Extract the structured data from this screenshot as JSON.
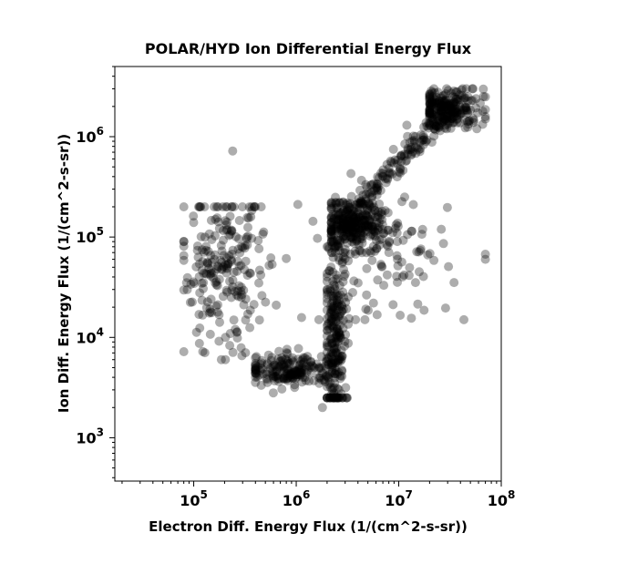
{
  "chart_data": {
    "type": "scatter",
    "title": "POLAR/HYD  Ion Differential Energy Flux",
    "xlabel": "Electron Diff. Energy Flux (1/(cm^2-s-sr))",
    "ylabel": "Ion Diff. Energy Flux (1/(cm^2-s-sr))",
    "x_scale": "log",
    "y_scale": "log",
    "xlim": [
      17000,
      100000000
    ],
    "ylim": [
      370,
      5000000
    ],
    "x_ticks": [
      {
        "base": "10",
        "exp": "5",
        "value": 100000
      },
      {
        "base": "10",
        "exp": "6",
        "value": 1000000
      },
      {
        "base": "10",
        "exp": "7",
        "value": 10000000
      },
      {
        "base": "10",
        "exp": "8",
        "value": 100000000
      }
    ],
    "y_ticks": [
      {
        "base": "10",
        "exp": "3",
        "value": 1000
      },
      {
        "base": "10",
        "exp": "4",
        "value": 10000
      },
      {
        "base": "10",
        "exp": "5",
        "value": 100000
      },
      {
        "base": "10",
        "exp": "6",
        "value": 1000000
      }
    ],
    "marker": {
      "color": "#000000",
      "opacity": 0.32,
      "shape": "circle"
    },
    "grid": false,
    "legend": "none",
    "clusters": [
      {
        "region": "high-flux tail",
        "x_range": [
          20000000,
          70000000
        ],
        "y_range": [
          1200000,
          3000000
        ],
        "log_center": [
          7.5,
          6.28
        ],
        "log_spread": [
          0.16,
          0.1
        ],
        "count": 220
      },
      {
        "region": "diagonal band",
        "from": [
          2500000,
          120000
        ],
        "to": [
          30000000,
          1800000
        ],
        "log_width": 0.05,
        "count": 180
      },
      {
        "region": "main dense core",
        "x_range": [
          2200000,
          10000000
        ],
        "y_range": [
          70000,
          220000
        ],
        "log_center": [
          6.55,
          5.1
        ],
        "log_spread": [
          0.17,
          0.12
        ],
        "count": 260
      },
      {
        "region": "vertical column",
        "x_range": [
          2000000,
          3300000
        ],
        "y_range": [
          2500,
          80000
        ],
        "log_center": [
          6.38,
          4.0
        ],
        "log_spread": [
          0.06,
          0.45
        ],
        "count": 240
      },
      {
        "region": "low horizontal band",
        "x_range": [
          400000,
          2800000
        ],
        "y_range": [
          2200,
          8000
        ],
        "log_center": [
          5.95,
          3.67
        ],
        "log_spread": [
          0.22,
          0.08
        ],
        "count": 200
      },
      {
        "region": "left low-flux cloud",
        "x_range": [
          80000,
          800000
        ],
        "y_range": [
          6000,
          200000
        ],
        "log_center": [
          5.3,
          4.65
        ],
        "log_spread": [
          0.22,
          0.4
        ],
        "count": 230
      },
      {
        "region": "scattered outliers",
        "x_range": [
          1000000,
          70000000
        ],
        "y_range": [
          15000,
          600000
        ],
        "log_center": [
          6.8,
          4.8
        ],
        "log_spread": [
          0.35,
          0.35
        ],
        "count": 120
      }
    ],
    "outliers": [
      {
        "x": 240000,
        "y": 720000
      },
      {
        "x": 1800000,
        "y": 2000
      },
      {
        "x": 70000000,
        "y": 60000
      },
      {
        "x": 12000000,
        "y": 1300000
      }
    ]
  }
}
